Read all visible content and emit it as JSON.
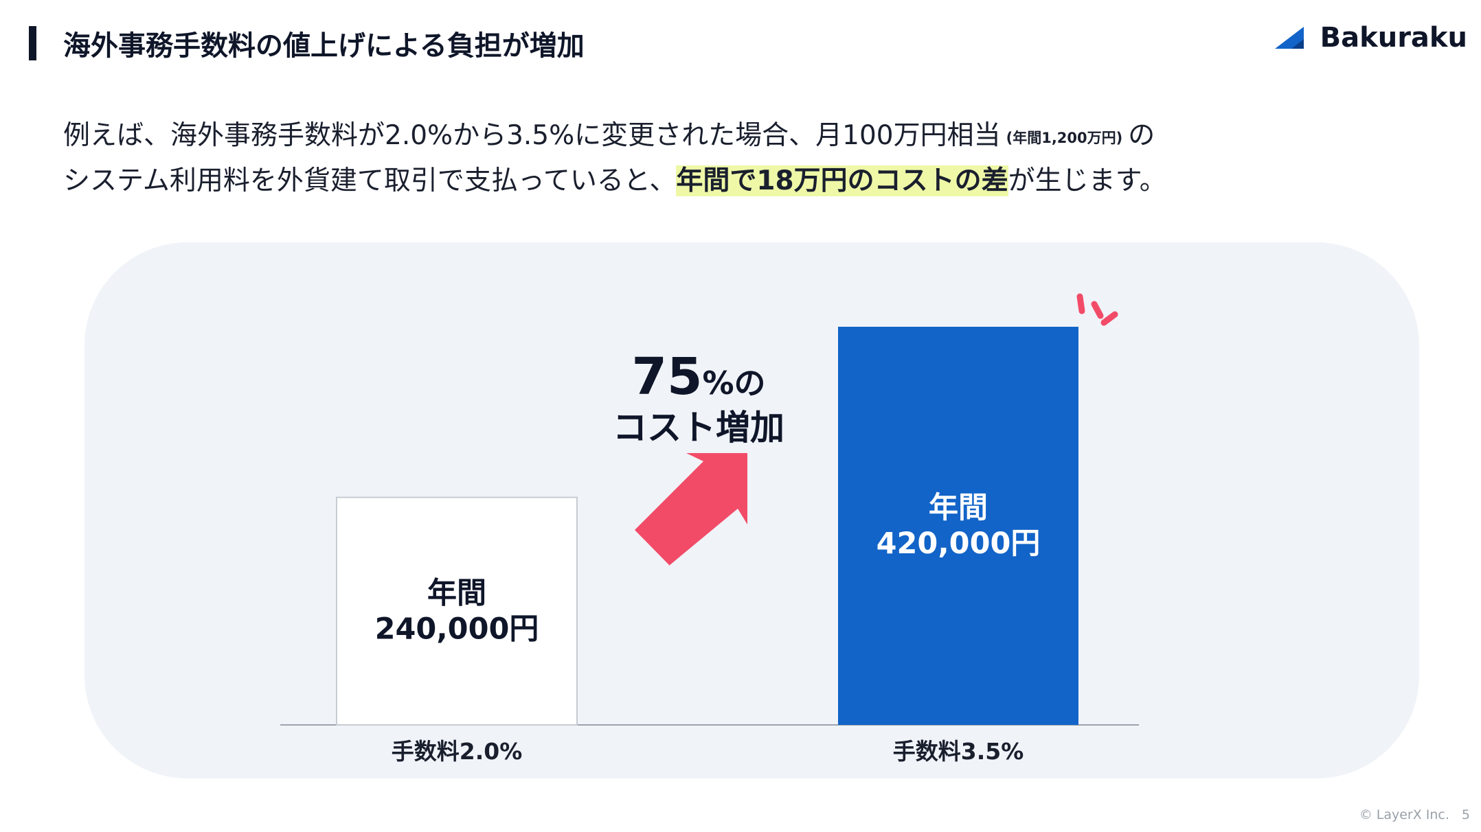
{
  "header": {
    "title": "海外事務手数料の値上げによる負担が増加",
    "logo_text": "Bakuraku"
  },
  "body": {
    "line1_before": "例えば、海外事務手数料が2.0%から3.5%に変更された場合、月100万円相当",
    "line1_small": "(年間1,200万円)",
    "line1_after": "の",
    "line2_before": "システム利用料を外貨建て取引で支払っていると、",
    "line2_highlight": "年間で18万円のコストの差",
    "line2_after": "が生じます。"
  },
  "chart_data": {
    "type": "bar",
    "categories": [
      "手数料2.0%",
      "手数料3.5%"
    ],
    "values": [
      240000,
      420000
    ],
    "data_labels": [
      [
        "年間",
        "240,000円"
      ],
      [
        "年間",
        "420,000円"
      ]
    ],
    "bar_colors": [
      "#ffffff",
      "#1264c8"
    ],
    "label_colors": [
      "#0f1629",
      "#ffffff"
    ],
    "annotation": {
      "big": "75",
      "small": "%の",
      "line2": "コスト増加"
    },
    "accent_color": "#f24b68",
    "ylim": [
      0,
      420000
    ]
  },
  "footer": {
    "copyright": "© LayerX Inc.",
    "page": "5"
  }
}
